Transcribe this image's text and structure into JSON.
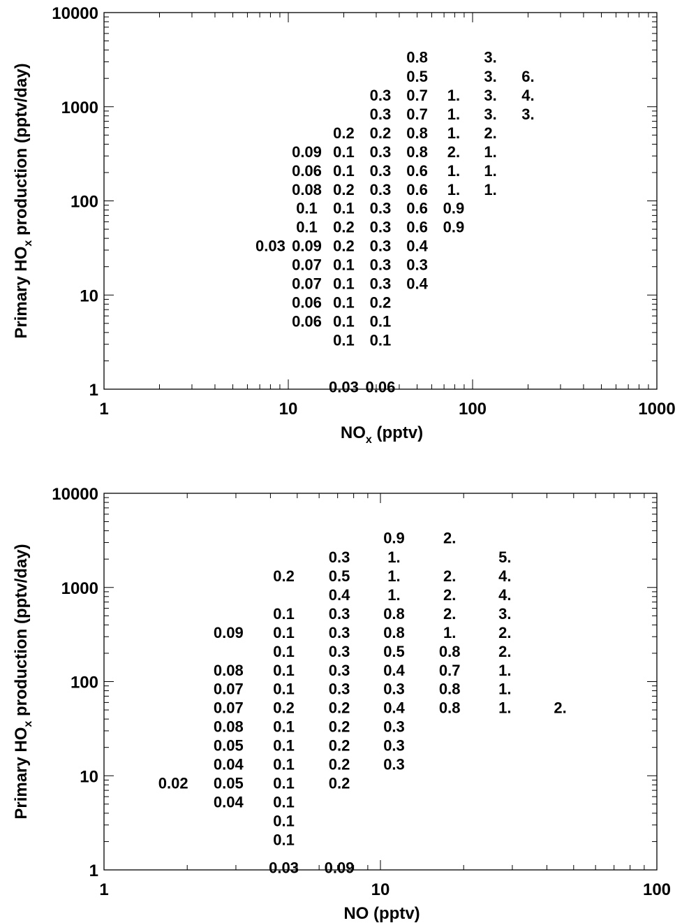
{
  "chart_data": [
    {
      "type": "table",
      "xscale": "log",
      "yscale": "log",
      "xlim": [
        1,
        1000
      ],
      "ylim": [
        1,
        10000
      ],
      "xticks": [
        {
          "v": 1,
          "label": "1"
        },
        {
          "v": 10,
          "label": "10"
        },
        {
          "v": 100,
          "label": "100"
        },
        {
          "v": 1000,
          "label": "1000"
        }
      ],
      "yticks": [
        {
          "v": 1,
          "label": "1"
        },
        {
          "v": 10,
          "label": "10"
        },
        {
          "v": 100,
          "label": "100"
        },
        {
          "v": 1000,
          "label": "1000"
        },
        {
          "v": 10000,
          "label": "10000"
        }
      ],
      "xlabel": {
        "main": "NO",
        "sub": "x",
        "rest": " (pptv)"
      },
      "ylabel": {
        "main": "Primary HO",
        "sub": "x",
        "rest": " production (pptv/day)"
      },
      "cells": [
        {
          "x": 50,
          "y": 3370,
          "t": "0.8"
        },
        {
          "x": 125,
          "y": 3370,
          "t": "3."
        },
        {
          "x": 50,
          "y": 2120,
          "t": "0.5"
        },
        {
          "x": 125,
          "y": 2120,
          "t": "3."
        },
        {
          "x": 200,
          "y": 2120,
          "t": "6."
        },
        {
          "x": 31.6,
          "y": 1330,
          "t": "0.3"
        },
        {
          "x": 50,
          "y": 1330,
          "t": "0.7"
        },
        {
          "x": 79,
          "y": 1330,
          "t": "1."
        },
        {
          "x": 125,
          "y": 1330,
          "t": "3."
        },
        {
          "x": 200,
          "y": 1330,
          "t": "4."
        },
        {
          "x": 31.6,
          "y": 840,
          "t": "0.3"
        },
        {
          "x": 50,
          "y": 840,
          "t": "0.7"
        },
        {
          "x": 79,
          "y": 840,
          "t": "1."
        },
        {
          "x": 125,
          "y": 840,
          "t": "3."
        },
        {
          "x": 200,
          "y": 840,
          "t": "3."
        },
        {
          "x": 20,
          "y": 530,
          "t": "0.2"
        },
        {
          "x": 31.6,
          "y": 530,
          "t": "0.2"
        },
        {
          "x": 50,
          "y": 530,
          "t": "0.8"
        },
        {
          "x": 79,
          "y": 530,
          "t": "1."
        },
        {
          "x": 125,
          "y": 530,
          "t": "2."
        },
        {
          "x": 12.6,
          "y": 335,
          "t": "0.09"
        },
        {
          "x": 20,
          "y": 335,
          "t": "0.1"
        },
        {
          "x": 31.6,
          "y": 335,
          "t": "0.3"
        },
        {
          "x": 50,
          "y": 335,
          "t": "0.8"
        },
        {
          "x": 79,
          "y": 335,
          "t": "2."
        },
        {
          "x": 125,
          "y": 335,
          "t": "1."
        },
        {
          "x": 12.6,
          "y": 211,
          "t": "0.06"
        },
        {
          "x": 20,
          "y": 211,
          "t": "0.1"
        },
        {
          "x": 31.6,
          "y": 211,
          "t": "0.3"
        },
        {
          "x": 50,
          "y": 211,
          "t": "0.6"
        },
        {
          "x": 79,
          "y": 211,
          "t": "1."
        },
        {
          "x": 125,
          "y": 211,
          "t": "1."
        },
        {
          "x": 12.6,
          "y": 133,
          "t": "0.08"
        },
        {
          "x": 20,
          "y": 133,
          "t": "0.2"
        },
        {
          "x": 31.6,
          "y": 133,
          "t": "0.3"
        },
        {
          "x": 50,
          "y": 133,
          "t": "0.6"
        },
        {
          "x": 79,
          "y": 133,
          "t": "1."
        },
        {
          "x": 125,
          "y": 133,
          "t": "1."
        },
        {
          "x": 12.6,
          "y": 84,
          "t": "0.1"
        },
        {
          "x": 20,
          "y": 84,
          "t": "0.1"
        },
        {
          "x": 31.6,
          "y": 84,
          "t": "0.3"
        },
        {
          "x": 50,
          "y": 84,
          "t": "0.6"
        },
        {
          "x": 79,
          "y": 84,
          "t": "0.9"
        },
        {
          "x": 12.6,
          "y": 53,
          "t": "0.1"
        },
        {
          "x": 20,
          "y": 53,
          "t": "0.2"
        },
        {
          "x": 31.6,
          "y": 53,
          "t": "0.3"
        },
        {
          "x": 50,
          "y": 53,
          "t": "0.6"
        },
        {
          "x": 79,
          "y": 53,
          "t": "0.9"
        },
        {
          "x": 8,
          "y": 33.5,
          "t": "0.03"
        },
        {
          "x": 12.6,
          "y": 33.5,
          "t": "0.09"
        },
        {
          "x": 20,
          "y": 33.5,
          "t": "0.2"
        },
        {
          "x": 31.6,
          "y": 33.5,
          "t": "0.3"
        },
        {
          "x": 50,
          "y": 33.5,
          "t": "0.4"
        },
        {
          "x": 12.6,
          "y": 21.1,
          "t": "0.07"
        },
        {
          "x": 20,
          "y": 21.1,
          "t": "0.1"
        },
        {
          "x": 31.6,
          "y": 21.1,
          "t": "0.3"
        },
        {
          "x": 50,
          "y": 21.1,
          "t": "0.3"
        },
        {
          "x": 12.6,
          "y": 13.3,
          "t": "0.07"
        },
        {
          "x": 20,
          "y": 13.3,
          "t": "0.1"
        },
        {
          "x": 31.6,
          "y": 13.3,
          "t": "0.3"
        },
        {
          "x": 50,
          "y": 13.3,
          "t": "0.4"
        },
        {
          "x": 12.6,
          "y": 8.4,
          "t": "0.06"
        },
        {
          "x": 20,
          "y": 8.4,
          "t": "0.1"
        },
        {
          "x": 31.6,
          "y": 8.4,
          "t": "0.2"
        },
        {
          "x": 12.6,
          "y": 5.3,
          "t": "0.06"
        },
        {
          "x": 20,
          "y": 5.3,
          "t": "0.1"
        },
        {
          "x": 31.6,
          "y": 5.3,
          "t": "0.1"
        },
        {
          "x": 20,
          "y": 3.35,
          "t": "0.1"
        },
        {
          "x": 31.6,
          "y": 3.35,
          "t": "0.1"
        },
        {
          "x": 20,
          "y": 1.06,
          "t": "0.03"
        },
        {
          "x": 31.6,
          "y": 1.06,
          "t": "0.06"
        }
      ]
    },
    {
      "type": "table",
      "xscale": "log",
      "yscale": "log",
      "xlim": [
        1,
        100
      ],
      "ylim": [
        1,
        10000
      ],
      "xticks": [
        {
          "v": 1,
          "label": "1"
        },
        {
          "v": 10,
          "label": "10"
        },
        {
          "v": 100,
          "label": "100"
        }
      ],
      "yticks": [
        {
          "v": 1,
          "label": "1"
        },
        {
          "v": 10,
          "label": "10"
        },
        {
          "v": 100,
          "label": "100"
        },
        {
          "v": 1000,
          "label": "1000"
        },
        {
          "v": 10000,
          "label": "10000"
        }
      ],
      "xlabel": {
        "main": "NO (pptv)",
        "sub": "",
        "rest": ""
      },
      "ylabel": {
        "main": "Primary HO",
        "sub": "x",
        "rest": " production (pptv/day)"
      },
      "cells": [
        {
          "x": 11.2,
          "y": 3370,
          "t": "0.9"
        },
        {
          "x": 17.8,
          "y": 3370,
          "t": "2."
        },
        {
          "x": 7.1,
          "y": 2120,
          "t": "0.3"
        },
        {
          "x": 11.2,
          "y": 2120,
          "t": "1."
        },
        {
          "x": 28.2,
          "y": 2120,
          "t": "5."
        },
        {
          "x": 4.47,
          "y": 1330,
          "t": "0.2"
        },
        {
          "x": 7.1,
          "y": 1330,
          "t": "0.5"
        },
        {
          "x": 11.2,
          "y": 1330,
          "t": "1."
        },
        {
          "x": 17.8,
          "y": 1330,
          "t": "2."
        },
        {
          "x": 28.2,
          "y": 1330,
          "t": "4."
        },
        {
          "x": 7.1,
          "y": 840,
          "t": "0.4"
        },
        {
          "x": 11.2,
          "y": 840,
          "t": "1."
        },
        {
          "x": 17.8,
          "y": 840,
          "t": "2."
        },
        {
          "x": 28.2,
          "y": 840,
          "t": "4."
        },
        {
          "x": 4.47,
          "y": 530,
          "t": "0.1"
        },
        {
          "x": 7.1,
          "y": 530,
          "t": "0.3"
        },
        {
          "x": 11.2,
          "y": 530,
          "t": "0.8"
        },
        {
          "x": 17.8,
          "y": 530,
          "t": "2."
        },
        {
          "x": 28.2,
          "y": 530,
          "t": "3."
        },
        {
          "x": 2.82,
          "y": 335,
          "t": "0.09"
        },
        {
          "x": 4.47,
          "y": 335,
          "t": "0.1"
        },
        {
          "x": 7.1,
          "y": 335,
          "t": "0.3"
        },
        {
          "x": 11.2,
          "y": 335,
          "t": "0.8"
        },
        {
          "x": 17.8,
          "y": 335,
          "t": "1."
        },
        {
          "x": 28.2,
          "y": 335,
          "t": "2."
        },
        {
          "x": 4.47,
          "y": 211,
          "t": "0.1"
        },
        {
          "x": 7.1,
          "y": 211,
          "t": "0.3"
        },
        {
          "x": 11.2,
          "y": 211,
          "t": "0.5"
        },
        {
          "x": 17.8,
          "y": 211,
          "t": "0.8"
        },
        {
          "x": 28.2,
          "y": 211,
          "t": "2."
        },
        {
          "x": 2.82,
          "y": 133,
          "t": "0.08"
        },
        {
          "x": 4.47,
          "y": 133,
          "t": "0.1"
        },
        {
          "x": 7.1,
          "y": 133,
          "t": "0.3"
        },
        {
          "x": 11.2,
          "y": 133,
          "t": "0.4"
        },
        {
          "x": 17.8,
          "y": 133,
          "t": "0.7"
        },
        {
          "x": 28.2,
          "y": 133,
          "t": "1."
        },
        {
          "x": 2.82,
          "y": 84,
          "t": "0.07"
        },
        {
          "x": 4.47,
          "y": 84,
          "t": "0.1"
        },
        {
          "x": 7.1,
          "y": 84,
          "t": "0.3"
        },
        {
          "x": 11.2,
          "y": 84,
          "t": "0.3"
        },
        {
          "x": 17.8,
          "y": 84,
          "t": "0.8"
        },
        {
          "x": 28.2,
          "y": 84,
          "t": "1."
        },
        {
          "x": 2.82,
          "y": 53,
          "t": "0.07"
        },
        {
          "x": 4.47,
          "y": 53,
          "t": "0.2"
        },
        {
          "x": 7.1,
          "y": 53,
          "t": "0.2"
        },
        {
          "x": 11.2,
          "y": 53,
          "t": "0.4"
        },
        {
          "x": 17.8,
          "y": 53,
          "t": "0.8"
        },
        {
          "x": 28.2,
          "y": 53,
          "t": "1."
        },
        {
          "x": 44.7,
          "y": 53,
          "t": "2."
        },
        {
          "x": 2.82,
          "y": 33.5,
          "t": "0.08"
        },
        {
          "x": 4.47,
          "y": 33.5,
          "t": "0.1"
        },
        {
          "x": 7.1,
          "y": 33.5,
          "t": "0.2"
        },
        {
          "x": 11.2,
          "y": 33.5,
          "t": "0.3"
        },
        {
          "x": 2.82,
          "y": 21.1,
          "t": "0.05"
        },
        {
          "x": 4.47,
          "y": 21.1,
          "t": "0.1"
        },
        {
          "x": 7.1,
          "y": 21.1,
          "t": "0.2"
        },
        {
          "x": 11.2,
          "y": 21.1,
          "t": "0.3"
        },
        {
          "x": 2.82,
          "y": 13.3,
          "t": "0.04"
        },
        {
          "x": 4.47,
          "y": 13.3,
          "t": "0.1"
        },
        {
          "x": 7.1,
          "y": 13.3,
          "t": "0.2"
        },
        {
          "x": 11.2,
          "y": 13.3,
          "t": "0.3"
        },
        {
          "x": 1.78,
          "y": 8.4,
          "t": "0.02"
        },
        {
          "x": 2.82,
          "y": 8.4,
          "t": "0.05"
        },
        {
          "x": 4.47,
          "y": 8.4,
          "t": "0.1"
        },
        {
          "x": 7.1,
          "y": 8.4,
          "t": "0.2"
        },
        {
          "x": 2.82,
          "y": 5.3,
          "t": "0.04"
        },
        {
          "x": 4.47,
          "y": 5.3,
          "t": "0.1"
        },
        {
          "x": 4.47,
          "y": 3.35,
          "t": "0.1"
        },
        {
          "x": 4.47,
          "y": 2.11,
          "t": "0.1"
        },
        {
          "x": 4.47,
          "y": 1.06,
          "t": "0.03"
        },
        {
          "x": 7.1,
          "y": 1.06,
          "t": "0.09"
        }
      ]
    }
  ]
}
